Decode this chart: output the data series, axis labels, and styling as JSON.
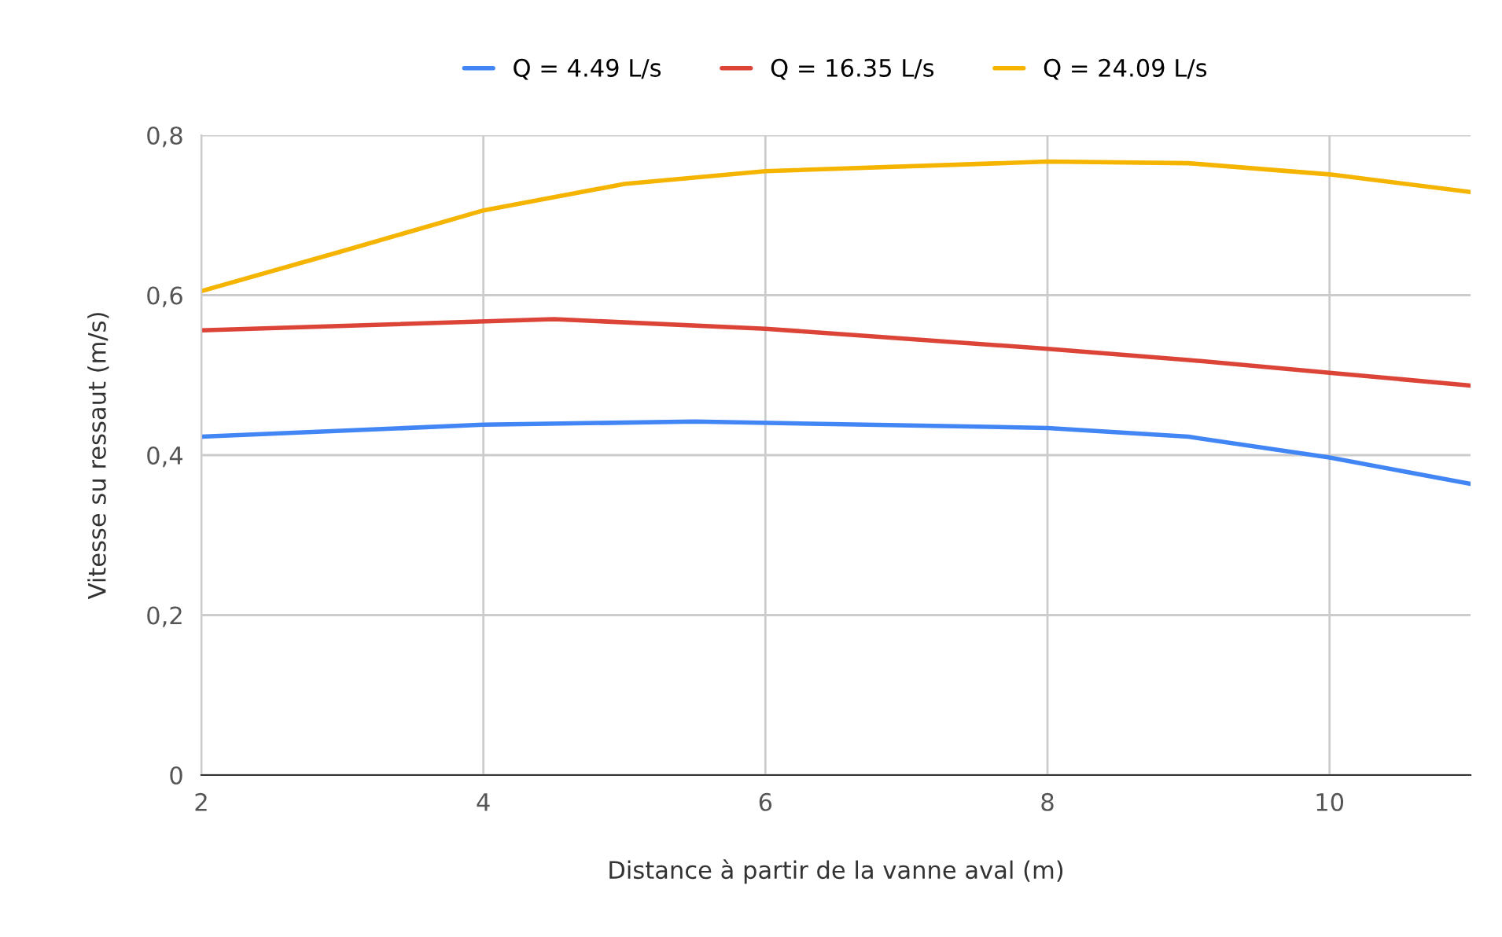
{
  "chart_data": {
    "type": "line",
    "xlabel": "Distance à partir de la vanne aval (m)",
    "ylabel": "Vitesse su ressaut (m/s)",
    "xlim": [
      2,
      11
    ],
    "xticks": [
      2,
      4,
      6,
      8,
      10
    ],
    "ylim": [
      0,
      0.8
    ],
    "yticks": [
      {
        "value": 0,
        "label": "0"
      },
      {
        "value": 0.2,
        "label": "0,2"
      },
      {
        "value": 0.4,
        "label": "0,4"
      },
      {
        "value": 0.6,
        "label": "0,6"
      },
      {
        "value": 0.8,
        "label": "0,8"
      }
    ],
    "grid": true,
    "legend": "top",
    "line_style": "solid",
    "series": [
      {
        "name": "Q = 4.49 L/s",
        "color": "#4285f4",
        "x": [
          2,
          4,
          5.5,
          8,
          9,
          10,
          11
        ],
        "values": [
          0.423,
          0.438,
          0.442,
          0.434,
          0.423,
          0.397,
          0.364
        ]
      },
      {
        "name": "Q = 16.35 L/s",
        "color": "#db4437",
        "x": [
          2,
          4.5,
          6,
          8,
          9,
          10,
          11
        ],
        "values": [
          0.556,
          0.57,
          0.558,
          0.533,
          0.519,
          0.503,
          0.487
        ]
      },
      {
        "name": "Q = 24.09 L/s",
        "color": "#f4b400",
        "x": [
          2,
          3,
          4,
          5,
          6,
          8,
          9,
          10,
          11
        ],
        "values": [
          0.605,
          0.655,
          0.706,
          0.739,
          0.755,
          0.767,
          0.765,
          0.751,
          0.729
        ]
      }
    ]
  }
}
